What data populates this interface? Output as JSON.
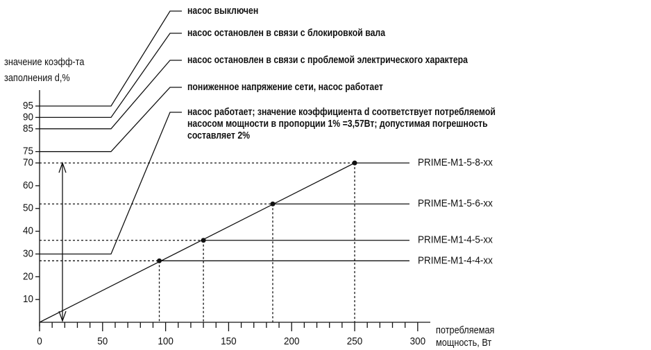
{
  "chart_data": {
    "type": "line",
    "y_label": [
      "значение коэфф-та",
      "заполнения d,%"
    ],
    "x_label": [
      "потребляемая",
      "мощность, Вт"
    ],
    "xlim": [
      0,
      310
    ],
    "ylim": [
      0,
      102
    ],
    "xticks": [
      0,
      50,
      100,
      150,
      200,
      250,
      300
    ],
    "x_minor_ticks": [
      10,
      20,
      30,
      40,
      60,
      70,
      80,
      90,
      110,
      120,
      130,
      140,
      160,
      170,
      180,
      190,
      210,
      220,
      230,
      240,
      260,
      270,
      280,
      290
    ],
    "yticks": [
      10,
      20,
      30,
      40,
      50,
      60,
      70,
      75,
      85,
      90,
      95
    ],
    "line": {
      "x": [
        0,
        250
      ],
      "values": [
        0,
        70
      ],
      "color": "#000000"
    },
    "points": {
      "names": [
        "PRIME-M1-4-4-xx",
        "PRIME-M1-4-5-xx",
        "PRIME-M1-5-6-xx",
        "PRIME-M1-5-8-xx"
      ],
      "x": [
        95,
        130,
        185,
        250
      ],
      "values": [
        27,
        36,
        52,
        70
      ]
    },
    "annotations": [
      {
        "level": 95,
        "text": [
          "насос выключен"
        ]
      },
      {
        "level": 90,
        "text": [
          "насос остановлен в связи с блокировкой вала"
        ]
      },
      {
        "level": 85,
        "text": [
          "насос остановлен в связи с проблемой электрического характера"
        ]
      },
      {
        "level": 75,
        "text": [
          "пониженное напряжение сети, насос работает"
        ]
      },
      {
        "level": 30,
        "text": [
          "насос работает; значение коэффициента d соответствует потребляемой",
          "насосом мощности в пропорции 1% =3,57Вт; допустимая погрешность",
          "составляет 2%"
        ]
      }
    ]
  }
}
